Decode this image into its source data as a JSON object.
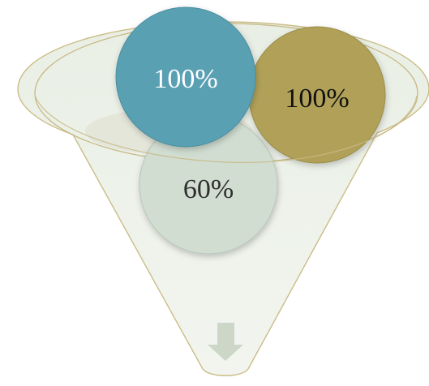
{
  "diagram": {
    "type": "funnel",
    "colors": {
      "funnel_fill": "#edf2e9",
      "funnel_stroke": "#cbbd87",
      "rim_stroke": "#c8b985",
      "shadow": "#e2e2d6",
      "arrow": "#ccd7c7"
    },
    "arrow_icon": "arrow-down-icon",
    "items": [
      {
        "label": "60%",
        "fill": "#d1ddd1",
        "text_color": "#2f2f2f"
      },
      {
        "label": "100%",
        "fill": "#b1a158",
        "text_color": "#111111"
      },
      {
        "label": "100%",
        "fill": "#5aa0b3",
        "text_color": "#ffffff"
      }
    ]
  }
}
